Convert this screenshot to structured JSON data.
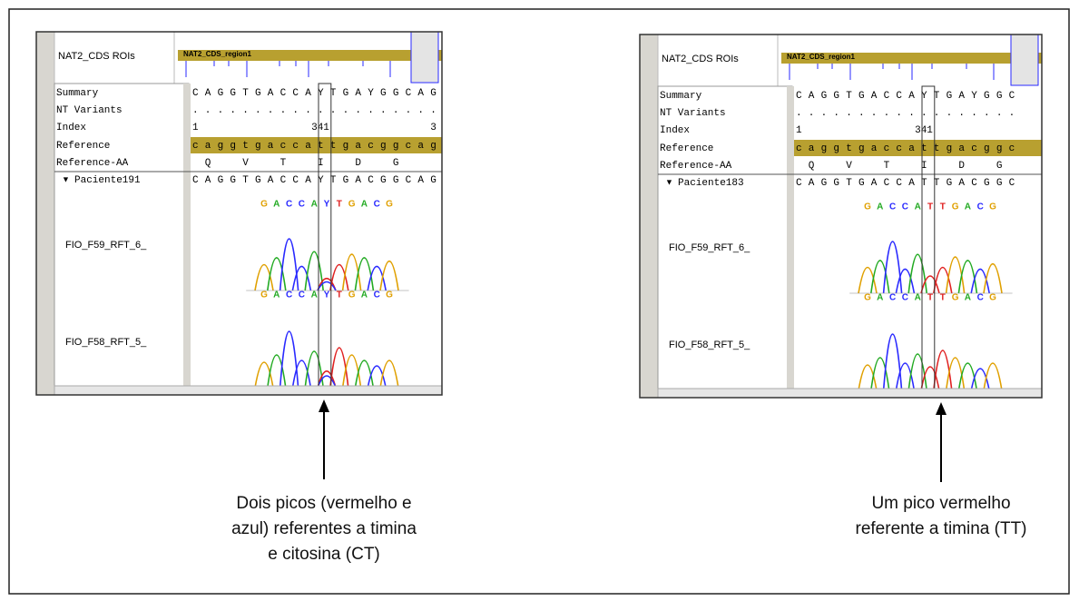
{
  "panels": [
    {
      "roi_label": "NAT2_CDS ROIs",
      "region": "NAT2_CDS_region1",
      "rows": [
        {
          "label": "Summary",
          "value": "CAGGTGACCAYTGAYGGCAG"
        },
        {
          "label": "NT Variants",
          "value": "...................."
        },
        {
          "label": "Reference",
          "value": "caggtgaccattgacggcag"
        },
        {
          "label": "Reference-AA",
          "value": " Q  V  T  I  D  G"
        }
      ],
      "index": {
        "label": "Index",
        "marks": [
          "1",
          "341",
          "3"
        ]
      },
      "sample": "Paciente191",
      "sample_seq": "CAGGTGACCAYTGACGGCAG",
      "traces": [
        {
          "name": "FIO_F59_RFT_6_",
          "calls": [
            "G",
            "A",
            "C",
            "C",
            "A",
            "Y",
            "T",
            "G",
            "A",
            "C",
            "G"
          ]
        },
        {
          "name": "FIO_F58_RFT_5_",
          "calls": [
            "G",
            "A",
            "C",
            "C",
            "A",
            "Y",
            "T",
            "G",
            "A",
            "C",
            "G"
          ]
        }
      ],
      "caption": [
        "Dois picos (vermelho e",
        "azul) referentes a timina",
        "e citosina (CT)"
      ]
    },
    {
      "roi_label": "NAT2_CDS ROIs",
      "region": "NAT2_CDS_region1",
      "rows": [
        {
          "label": "Summary",
          "value": "CAGGTGACCAYTGAYGGC"
        },
        {
          "label": "NT Variants",
          "value": ".................."
        },
        {
          "label": "Reference",
          "value": "caggtgaccattgacggc"
        },
        {
          "label": "Reference-AA",
          "value": " Q  V  T  I  D  G"
        }
      ],
      "index": {
        "label": "Index",
        "marks": [
          "1",
          "341"
        ]
      },
      "sample": "Paciente183",
      "sample_seq": "CAGGTGACCATTGACGGC",
      "traces": [
        {
          "name": "FIO_F59_RFT_6_",
          "calls": [
            "G",
            "A",
            "C",
            "C",
            "A",
            "T",
            "T",
            "G",
            "A",
            "C",
            "G"
          ]
        },
        {
          "name": "FIO_F58_RFT_5_",
          "calls": [
            "G",
            "A",
            "C",
            "C",
            "A",
            "T",
            "T",
            "G",
            "A",
            "C",
            "G"
          ]
        }
      ],
      "caption": [
        "Um pico vermelho",
        "referente a timina (TT)"
      ]
    }
  ]
}
